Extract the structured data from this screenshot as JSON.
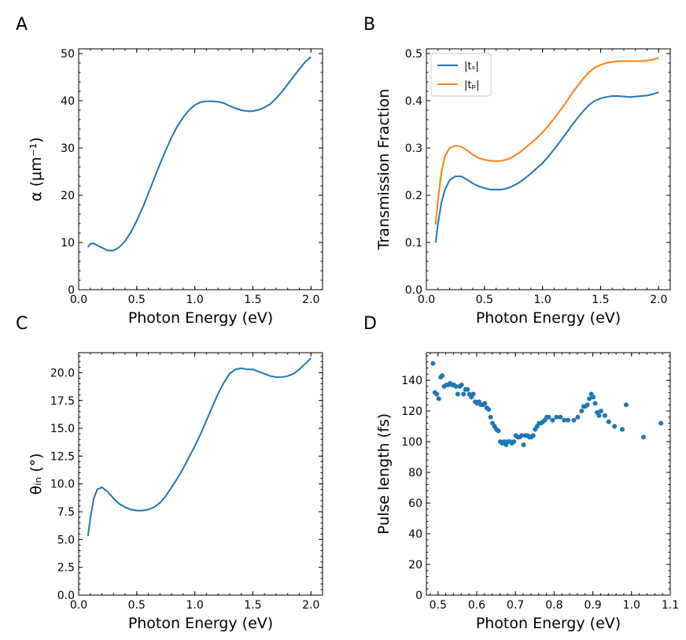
{
  "panel_labels": [
    "A",
    "B",
    "C",
    "D"
  ],
  "colors": {
    "blue": "#1f77b4",
    "orange": "#ff7f0e"
  },
  "chart_data": [
    {
      "panel": "A",
      "type": "line",
      "xlabel": "Photon Energy (eV)",
      "ylabel": "α (μm⁻¹)",
      "xlim": [
        0.0,
        2.1
      ],
      "ylim": [
        0,
        51
      ],
      "xticks": [
        0.0,
        0.5,
        1.0,
        1.5,
        2.0
      ],
      "yticks": [
        0,
        10,
        20,
        30,
        40,
        50
      ],
      "xtick_labels": [
        "0.0",
        "0.5",
        "1.0",
        "1.5",
        "2.0"
      ],
      "ytick_labels": [
        "0",
        "10",
        "20",
        "30",
        "40",
        "50"
      ],
      "grid": false,
      "series": [
        {
          "color": "#1f77b4",
          "x": [
            0.08,
            0.1,
            0.13,
            0.16,
            0.2,
            0.25,
            0.3,
            0.35,
            0.4,
            0.45,
            0.5,
            0.55,
            0.6,
            0.65,
            0.7,
            0.75,
            0.8,
            0.85,
            0.9,
            0.95,
            1.0,
            1.05,
            1.1,
            1.15,
            1.2,
            1.25,
            1.3,
            1.35,
            1.4,
            1.45,
            1.5,
            1.55,
            1.6,
            1.65,
            1.7,
            1.75,
            1.8,
            1.85,
            1.9,
            1.95,
            2.0
          ],
          "y": [
            9.0,
            9.7,
            9.8,
            9.4,
            8.9,
            8.3,
            8.3,
            9.0,
            10.3,
            12.2,
            14.6,
            17.3,
            20.4,
            23.5,
            26.6,
            29.5,
            32.3,
            34.6,
            36.5,
            38.0,
            39.1,
            39.7,
            39.9,
            39.9,
            39.8,
            39.5,
            38.9,
            38.4,
            38.0,
            37.8,
            37.8,
            38.1,
            38.6,
            39.3,
            40.5,
            41.9,
            43.5,
            45.1,
            46.7,
            48.2,
            49.3
          ]
        }
      ]
    },
    {
      "panel": "B",
      "type": "line",
      "xlabel": "Photon Energy (eV)",
      "ylabel": "Transmission Fraction",
      "xlim": [
        0.0,
        2.1
      ],
      "ylim": [
        0.0,
        0.51
      ],
      "xticks": [
        0.0,
        0.5,
        1.0,
        1.5,
        2.0
      ],
      "yticks": [
        0.0,
        0.1,
        0.2,
        0.3,
        0.4,
        0.5
      ],
      "xtick_labels": [
        "0.0",
        "0.5",
        "1.0",
        "1.5",
        "2.0"
      ],
      "ytick_labels": [
        "0.0",
        "0.1",
        "0.2",
        "0.3",
        "0.4",
        "0.5"
      ],
      "grid": false,
      "legend": "top-left",
      "series": [
        {
          "name": "|tₛ|",
          "color": "#1f77b4",
          "x": [
            0.08,
            0.1,
            0.13,
            0.16,
            0.2,
            0.25,
            0.3,
            0.35,
            0.4,
            0.45,
            0.5,
            0.55,
            0.6,
            0.65,
            0.7,
            0.75,
            0.8,
            0.85,
            0.9,
            0.95,
            1.0,
            1.05,
            1.1,
            1.15,
            1.2,
            1.25,
            1.3,
            1.35,
            1.4,
            1.45,
            1.5,
            1.55,
            1.6,
            1.65,
            1.7,
            1.75,
            1.8,
            1.85,
            1.9,
            1.95,
            2.0
          ],
          "y": [
            0.1,
            0.14,
            0.185,
            0.212,
            0.232,
            0.24,
            0.24,
            0.233,
            0.225,
            0.219,
            0.215,
            0.212,
            0.212,
            0.212,
            0.215,
            0.22,
            0.227,
            0.236,
            0.246,
            0.257,
            0.268,
            0.282,
            0.297,
            0.313,
            0.33,
            0.347,
            0.363,
            0.378,
            0.391,
            0.4,
            0.405,
            0.408,
            0.41,
            0.41,
            0.409,
            0.408,
            0.409,
            0.41,
            0.411,
            0.414,
            0.418
          ]
        },
        {
          "name": "|tₚ|",
          "color": "#ff7f0e",
          "x": [
            0.08,
            0.1,
            0.13,
            0.16,
            0.2,
            0.25,
            0.3,
            0.35,
            0.4,
            0.45,
            0.5,
            0.55,
            0.6,
            0.65,
            0.7,
            0.75,
            0.8,
            0.85,
            0.9,
            0.95,
            1.0,
            1.05,
            1.1,
            1.15,
            1.2,
            1.25,
            1.3,
            1.35,
            1.4,
            1.45,
            1.5,
            1.55,
            1.6,
            1.65,
            1.7,
            1.75,
            1.8,
            1.85,
            1.9,
            1.95,
            2.0
          ],
          "y": [
            0.138,
            0.19,
            0.25,
            0.283,
            0.3,
            0.305,
            0.303,
            0.295,
            0.286,
            0.279,
            0.275,
            0.273,
            0.272,
            0.273,
            0.276,
            0.282,
            0.29,
            0.3,
            0.31,
            0.321,
            0.333,
            0.347,
            0.362,
            0.379,
            0.396,
            0.414,
            0.431,
            0.447,
            0.46,
            0.47,
            0.476,
            0.48,
            0.482,
            0.484,
            0.484,
            0.484,
            0.484,
            0.484,
            0.485,
            0.487,
            0.491
          ]
        }
      ]
    },
    {
      "panel": "C",
      "type": "line",
      "xlabel": "Photon Energy (eV)",
      "ylabel": "θᵢₙ (°)",
      "xlim": [
        0.0,
        2.1
      ],
      "ylim": [
        0.0,
        21.8
      ],
      "xticks": [
        0.0,
        0.5,
        1.0,
        1.5,
        2.0
      ],
      "yticks": [
        0.0,
        2.5,
        5.0,
        7.5,
        10.0,
        12.5,
        15.0,
        17.5,
        20.0
      ],
      "xtick_labels": [
        "0.0",
        "0.5",
        "1.0",
        "1.5",
        "2.0"
      ],
      "ytick_labels": [
        "0.0",
        "2.5",
        "5.0",
        "7.5",
        "10.0",
        "12.5",
        "15.0",
        "17.5",
        "20.0"
      ],
      "grid": false,
      "series": [
        {
          "color": "#1f77b4",
          "x": [
            0.08,
            0.1,
            0.13,
            0.16,
            0.2,
            0.25,
            0.3,
            0.35,
            0.4,
            0.45,
            0.5,
            0.55,
            0.6,
            0.65,
            0.7,
            0.75,
            0.8,
            0.85,
            0.9,
            0.95,
            1.0,
            1.05,
            1.1,
            1.15,
            1.2,
            1.25,
            1.3,
            1.35,
            1.4,
            1.45,
            1.5,
            1.55,
            1.6,
            1.65,
            1.7,
            1.75,
            1.8,
            1.85,
            1.9,
            1.95,
            2.0
          ],
          "y": [
            5.3,
            6.9,
            8.7,
            9.5,
            9.7,
            9.3,
            8.7,
            8.2,
            7.9,
            7.7,
            7.6,
            7.6,
            7.7,
            7.9,
            8.3,
            8.9,
            9.7,
            10.5,
            11.4,
            12.4,
            13.4,
            14.5,
            15.7,
            16.9,
            18.1,
            19.1,
            19.9,
            20.3,
            20.4,
            20.3,
            20.3,
            20.1,
            19.9,
            19.7,
            19.6,
            19.6,
            19.7,
            19.9,
            20.3,
            20.8,
            21.3
          ]
        }
      ]
    },
    {
      "panel": "D",
      "type": "scatter",
      "xlabel": "Photon Energy (eV)",
      "ylabel": "Pulse length (fs)",
      "xlim": [
        0.47,
        1.1
      ],
      "ylim": [
        0,
        158
      ],
      "xticks": [
        0.5,
        0.6,
        0.7,
        0.8,
        0.9,
        1.0,
        1.1
      ],
      "yticks": [
        0,
        20,
        40,
        60,
        80,
        100,
        120,
        140
      ],
      "xtick_labels": [
        "0.5",
        "0.6",
        "0.7",
        "0.8",
        "0.9",
        "1.0",
        "1.1"
      ],
      "ytick_labels": [
        "0",
        "20",
        "40",
        "60",
        "80",
        "100",
        "120",
        "140"
      ],
      "grid": false,
      "series": [
        {
          "color": "#1f77b4",
          "x": [
            0.487,
            0.492,
            0.497,
            0.502,
            0.507,
            0.511,
            0.516,
            0.521,
            0.526,
            0.531,
            0.536,
            0.541,
            0.546,
            0.551,
            0.556,
            0.561,
            0.566,
            0.571,
            0.576,
            0.581,
            0.586,
            0.591,
            0.596,
            0.601,
            0.606,
            0.611,
            0.616,
            0.621,
            0.626,
            0.631,
            0.636,
            0.641,
            0.646,
            0.651,
            0.656,
            0.661,
            0.666,
            0.671,
            0.676,
            0.681,
            0.686,
            0.691,
            0.696,
            0.701,
            0.706,
            0.711,
            0.716,
            0.721,
            0.726,
            0.731,
            0.736,
            0.741,
            0.746,
            0.751,
            0.756,
            0.761,
            0.766,
            0.771,
            0.776,
            0.781,
            0.786,
            0.796,
            0.806,
            0.816,
            0.826,
            0.836,
            0.851,
            0.861,
            0.871,
            0.876,
            0.881,
            0.886,
            0.891,
            0.896,
            0.901,
            0.906,
            0.911,
            0.916,
            0.921,
            0.931,
            0.941,
            0.956,
            0.976,
            0.986,
            1.031,
            1.076
          ],
          "y": [
            151,
            132,
            131,
            128,
            142,
            143,
            136,
            137,
            137,
            138,
            137,
            137,
            136,
            131,
            136,
            137,
            131,
            134,
            134,
            131,
            129,
            131,
            126,
            125,
            126,
            124,
            124,
            125,
            122,
            121,
            116,
            112,
            110,
            108,
            107,
            100,
            99,
            100,
            98,
            100,
            100,
            99,
            100,
            104,
            103,
            103,
            104,
            98,
            104,
            104,
            103,
            103,
            104,
            108,
            110,
            112,
            112,
            113,
            114,
            116,
            116,
            114,
            116,
            116,
            114,
            114,
            114,
            116,
            120,
            123,
            123,
            124,
            128,
            131,
            129,
            125,
            119,
            117,
            120,
            117,
            113,
            110,
            108,
            124,
            103,
            112
          ]
        }
      ]
    }
  ]
}
